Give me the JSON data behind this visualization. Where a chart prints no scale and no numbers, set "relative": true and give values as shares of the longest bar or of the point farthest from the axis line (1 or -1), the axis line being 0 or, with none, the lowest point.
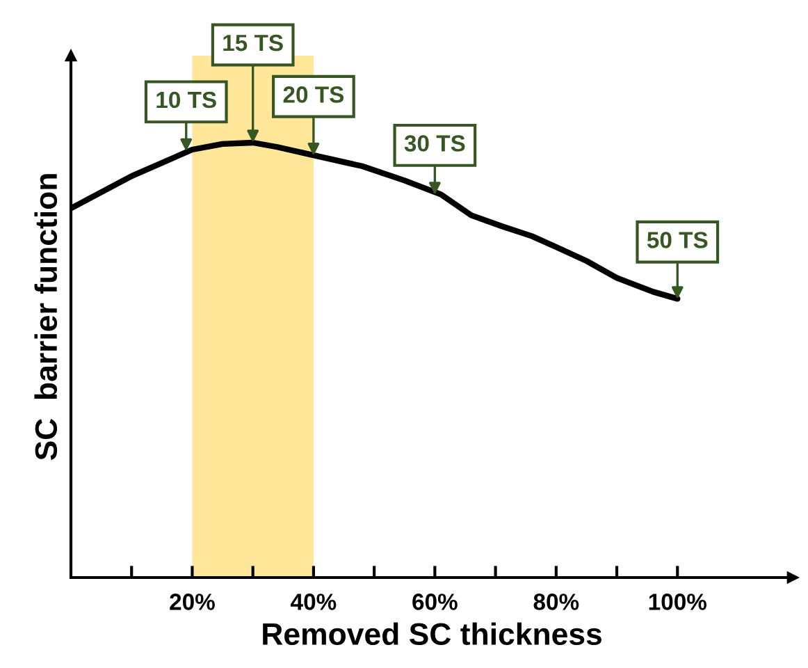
{
  "chart_data": {
    "type": "line",
    "relative": true,
    "xlabel": "Removed SC thickness",
    "ylabel": "SC  barrier function",
    "x": [
      0,
      10,
      20,
      25,
      30,
      34,
      40,
      48,
      55,
      61,
      66,
      71,
      76,
      80,
      85,
      90,
      96,
      100
    ],
    "series": [
      {
        "color": "#000000",
        "values": [
          0.849,
          0.923,
          0.984,
          0.997,
          1.0,
          0.99,
          0.971,
          0.946,
          0.913,
          0.881,
          0.833,
          0.808,
          0.785,
          0.76,
          0.728,
          0.689,
          0.657,
          0.641
        ]
      }
    ],
    "xlim": [
      0,
      119
    ],
    "xticks": [
      {
        "value": 10,
        "label": null
      },
      {
        "value": 20,
        "label": "20%"
      },
      {
        "value": 30,
        "label": null
      },
      {
        "value": 40,
        "label": "40%"
      },
      {
        "value": 50,
        "label": null
      },
      {
        "value": 60,
        "label": "60%"
      },
      {
        "value": 70,
        "label": null
      },
      {
        "value": 80,
        "label": "80%"
      },
      {
        "value": 90,
        "label": null
      },
      {
        "value": 100,
        "label": "100%"
      }
    ],
    "bands": [
      {
        "axis": "x",
        "from": 20,
        "to": 40,
        "color": "#ffe699"
      }
    ],
    "annotations": [
      {
        "text": "10 TS",
        "x": 19,
        "y": 0.98
      },
      {
        "text": "15 TS",
        "x": 30,
        "y": 1.0
      },
      {
        "text": "20 TS",
        "x": 40,
        "y": 0.97
      },
      {
        "text": "30 TS",
        "x": 60,
        "y": 0.88
      },
      {
        "text": "50 TS",
        "x": 100,
        "y": 0.64
      }
    ],
    "grid": false,
    "legend": false,
    "marker": "none",
    "line_style": "solid"
  }
}
